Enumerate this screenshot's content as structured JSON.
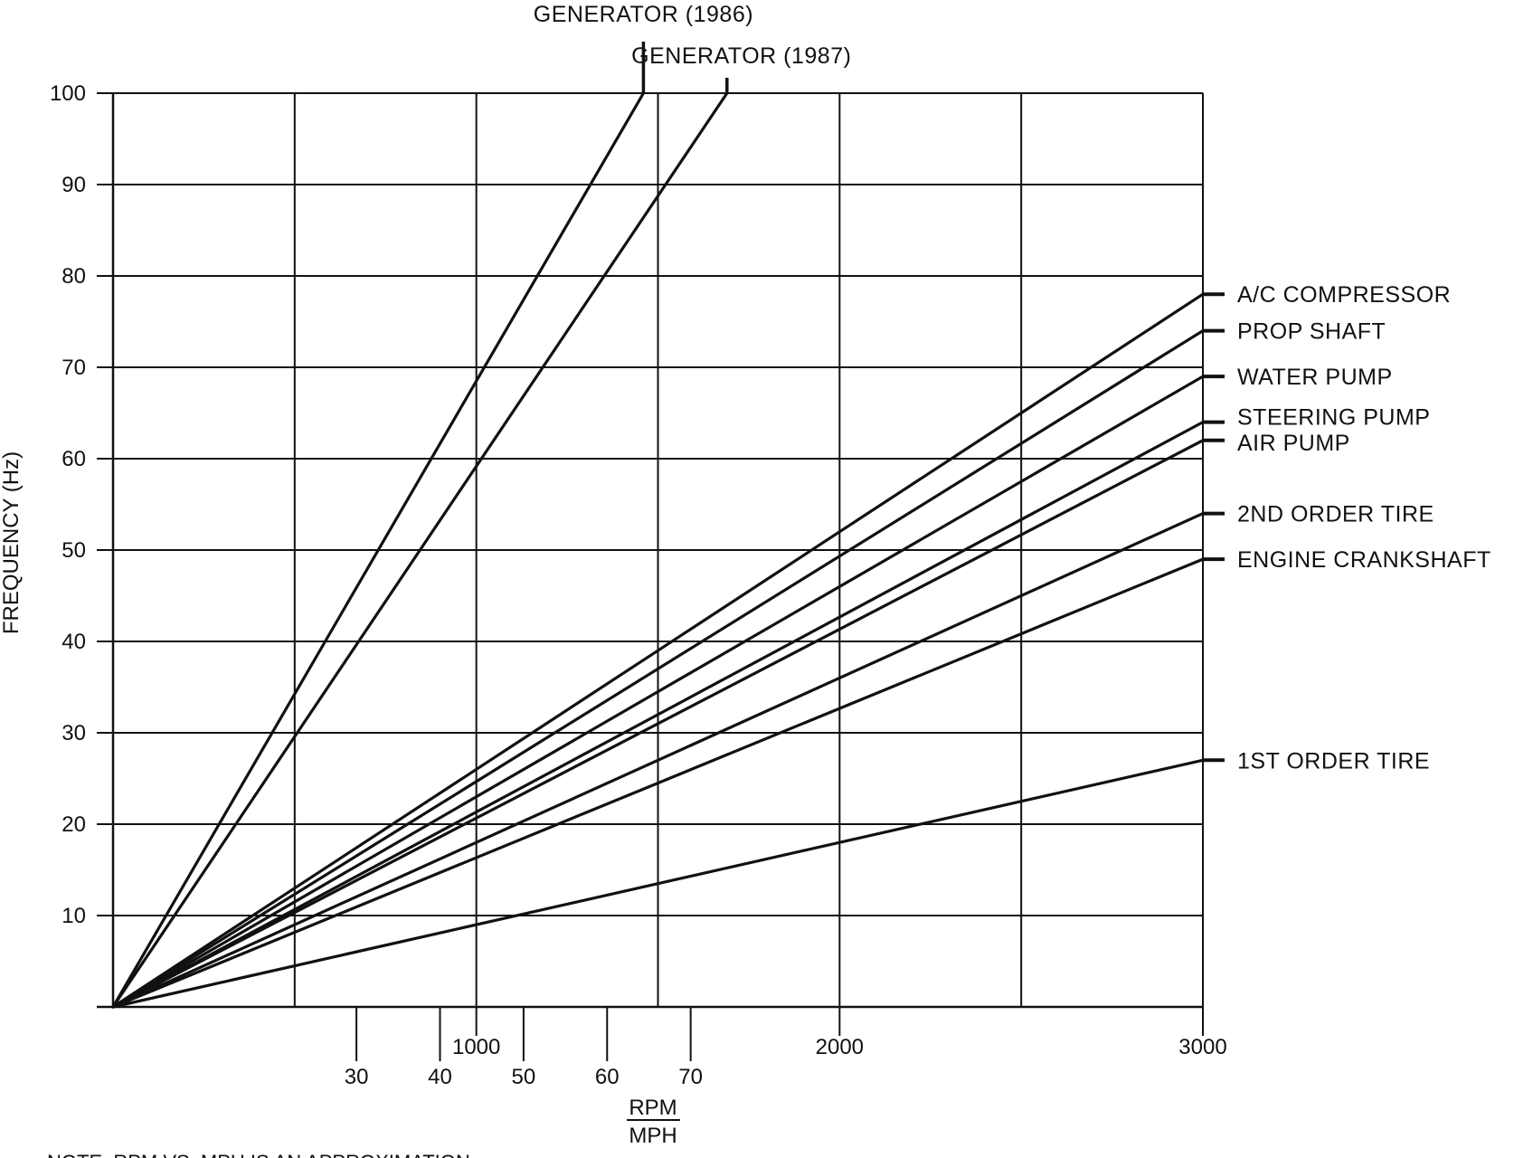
{
  "chart_data": {
    "type": "line",
    "title": "",
    "ylabel": "FREQUENCY (Hz)",
    "xlabel_top": "RPM",
    "xlabel_bottom": "MPH",
    "note": "NOTE: RPM VS. MPH IS AN APPROXIMATION",
    "xlim": [
      0,
      3000
    ],
    "ylim": [
      0,
      100
    ],
    "grid": true,
    "y_ticks": [
      10,
      20,
      30,
      40,
      50,
      60,
      70,
      80,
      90,
      100
    ],
    "y_tick_labels": [
      "10",
      "20",
      "30",
      "40",
      "50",
      "60",
      "70",
      "80",
      "90",
      "100"
    ],
    "x_rpm_ticks": [
      1000,
      2000,
      3000
    ],
    "x_rpm_tick_labels": [
      "1000",
      "2000",
      "3000"
    ],
    "x_rpm_minor_ticks": [
      500,
      1500,
      2500
    ],
    "x_mph_ticks": [
      670,
      900,
      1130,
      1360,
      1590
    ],
    "x_mph_tick_labels": [
      "30",
      "40",
      "50",
      "60",
      "70"
    ],
    "series": [
      {
        "name": "GENERATOR (1986)",
        "x": [
          0,
          1460
        ],
        "y": [
          0,
          100
        ]
      },
      {
        "name": "GENERATOR (1987)",
        "x": [
          0,
          1690
        ],
        "y": [
          0,
          100
        ]
      },
      {
        "name": "A/C COMPRESSOR",
        "x": [
          0,
          3000
        ],
        "y": [
          0,
          78
        ]
      },
      {
        "name": "PROP SHAFT",
        "x": [
          0,
          3000
        ],
        "y": [
          0,
          74
        ]
      },
      {
        "name": "WATER PUMP",
        "x": [
          0,
          3000
        ],
        "y": [
          0,
          69
        ]
      },
      {
        "name": "STEERING PUMP",
        "x": [
          0,
          3000
        ],
        "y": [
          0,
          64
        ]
      },
      {
        "name": "AIR PUMP",
        "x": [
          0,
          3000
        ],
        "y": [
          0,
          62
        ]
      },
      {
        "name": "2ND ORDER TIRE",
        "x": [
          0,
          3000
        ],
        "y": [
          0,
          54
        ]
      },
      {
        "name": "ENGINE CRANKSHAFT",
        "x": [
          0,
          3000
        ],
        "y": [
          0,
          49
        ]
      },
      {
        "name": "1ST ORDER TIRE",
        "x": [
          0,
          3000
        ],
        "y": [
          0,
          27
        ]
      }
    ]
  }
}
